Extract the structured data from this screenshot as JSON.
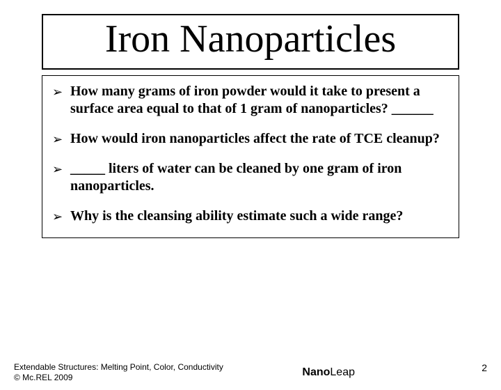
{
  "title": "Iron Nanoparticles",
  "bullets": [
    "How many grams of iron powder would it take to present a surface area equal to that of 1 gram of nanoparticles? ______",
    "How would iron nanoparticles affect the rate of TCE cleanup?",
    " _____ liters of water can be cleaned by one gram of iron nanoparticles.",
    "Why is the cleansing ability estimate such a wide range?"
  ],
  "bullet_glyph": "➢",
  "footer": {
    "line1": "Extendable Structures: Melting Point, Color, Conductivity",
    "line2": "© Mc.REL 2009",
    "logo_part1": "Nano",
    "logo_part2": "Leap",
    "page_number": "2"
  },
  "colors": {
    "background": "#ffffff",
    "text": "#000000",
    "border": "#000000"
  }
}
